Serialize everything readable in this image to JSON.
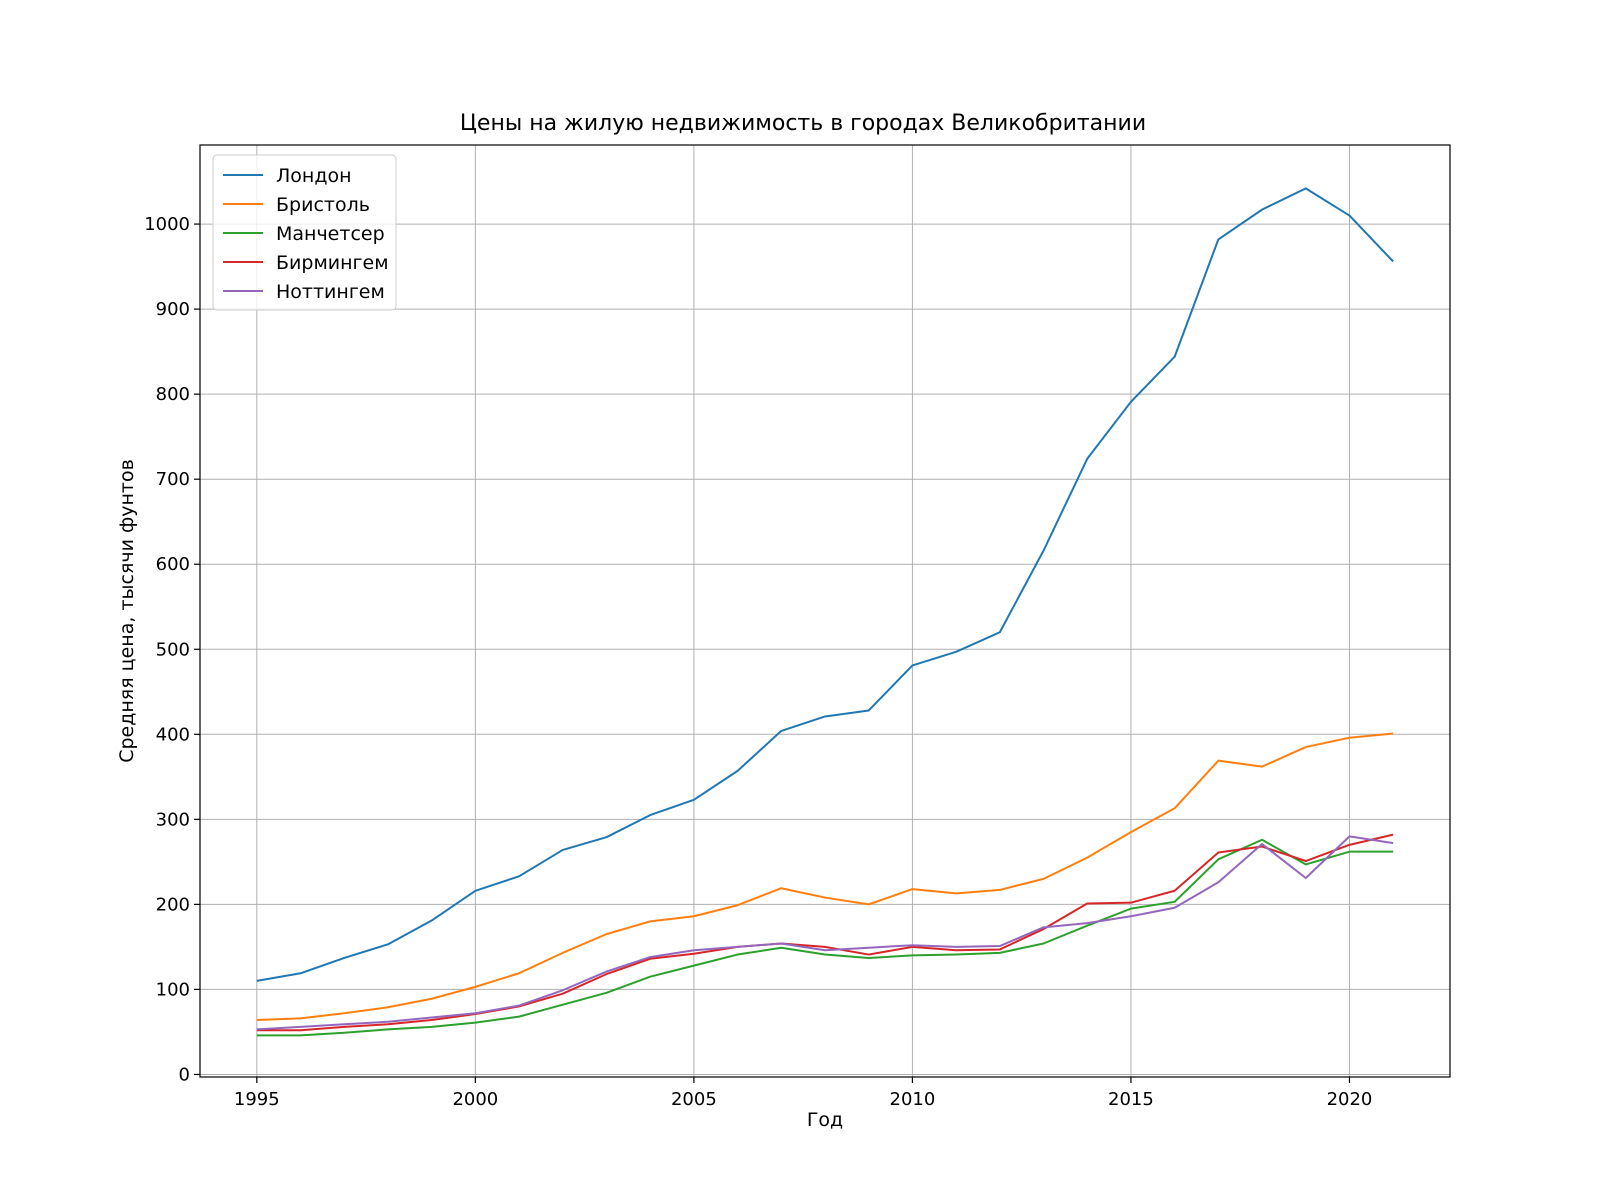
{
  "chart_data": {
    "type": "line",
    "title": "Цены на жилую недвижимость в городах Великобритании",
    "xlabel": "Год",
    "ylabel": "Средняя цена, тысячи фунтов",
    "xlim": [
      1993.7,
      2022.3
    ],
    "ylim": [
      -3,
      1093
    ],
    "xticks": [
      1995,
      2000,
      2005,
      2010,
      2015,
      2020
    ],
    "yticks": [
      0,
      100,
      200,
      300,
      400,
      500,
      600,
      700,
      800,
      900,
      1000
    ],
    "grid": true,
    "legend_position": "upper-left",
    "x": [
      1995,
      1996,
      1997,
      1998,
      1999,
      2000,
      2001,
      2002,
      2003,
      2004,
      2005,
      2006,
      2007,
      2008,
      2009,
      2010,
      2011,
      2012,
      2013,
      2014,
      2015,
      2016,
      2017,
      2018,
      2019,
      2020,
      2021
    ],
    "series": [
      {
        "name": "Лондон",
        "color": "#1f77b4",
        "values": [
          110,
          119,
          137,
          153,
          181,
          216,
          233,
          264,
          279,
          305,
          323,
          357,
          404,
          421,
          428,
          481,
          497,
          520,
          616,
          724,
          791,
          844,
          982,
          1017,
          1042,
          1010,
          956
        ]
      },
      {
        "name": "Бристоль",
        "color": "#ff7f0e",
        "values": [
          64,
          66,
          72,
          79,
          89,
          103,
          119,
          143,
          165,
          180,
          186,
          199,
          219,
          208,
          200,
          218,
          213,
          217,
          230,
          255,
          285,
          313,
          369,
          362,
          385,
          396,
          401
        ]
      },
      {
        "name": "Манчетсер",
        "color": "#2ca02c",
        "values": [
          46,
          46,
          49,
          53,
          56,
          61,
          68,
          82,
          96,
          115,
          128,
          141,
          149,
          141,
          137,
          140,
          141,
          143,
          154,
          175,
          195,
          203,
          253,
          276,
          247,
          262,
          262
        ]
      },
      {
        "name": "Бирмингем",
        "color": "#d62728",
        "values": [
          52,
          52,
          56,
          59,
          64,
          71,
          80,
          95,
          118,
          136,
          142,
          150,
          154,
          150,
          141,
          150,
          146,
          147,
          171,
          201,
          202,
          216,
          261,
          268,
          251,
          270,
          282
        ]
      },
      {
        "name": "Ноттингем",
        "color": "#9467bd",
        "values": [
          53,
          56,
          59,
          62,
          67,
          72,
          81,
          99,
          121,
          138,
          146,
          150,
          154,
          146,
          149,
          152,
          150,
          151,
          173,
          178,
          186,
          196,
          226,
          271,
          231,
          280,
          272
        ]
      }
    ]
  }
}
